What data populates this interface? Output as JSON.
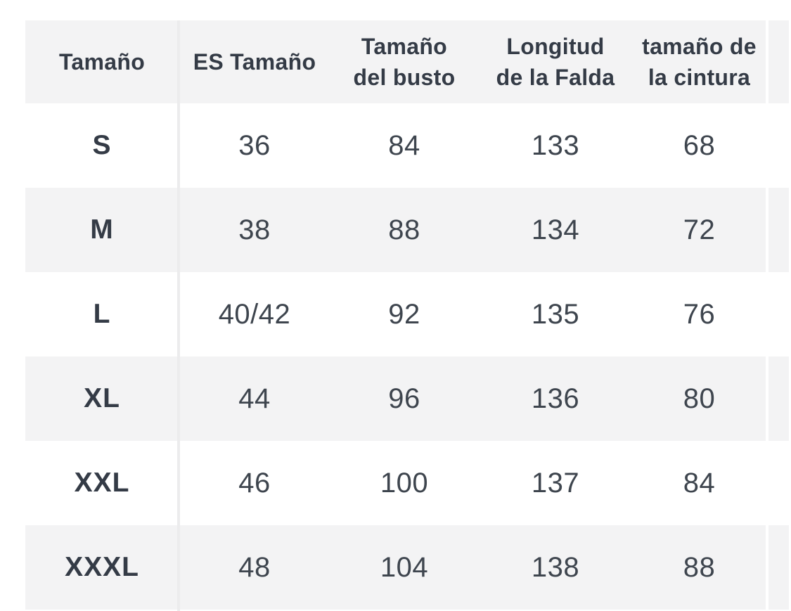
{
  "table": {
    "columns": [
      {
        "key": "size",
        "label": "Tamaño"
      },
      {
        "key": "es_size",
        "label": "ES Tamaño"
      },
      {
        "key": "bust",
        "label": "Tamaño\ndel busto"
      },
      {
        "key": "skirt_length",
        "label": "Longitud\nde la Falda"
      },
      {
        "key": "waist",
        "label": "tamaño de\nla cintura"
      }
    ],
    "rows": [
      {
        "size": "S",
        "es_size": "36",
        "bust": "84",
        "skirt_length": "133",
        "waist": "68"
      },
      {
        "size": "M",
        "es_size": "38",
        "bust": "88",
        "skirt_length": "134",
        "waist": "72"
      },
      {
        "size": "L",
        "es_size": "40/42",
        "bust": "92",
        "skirt_length": "135",
        "waist": "76"
      },
      {
        "size": "XL",
        "es_size": "44",
        "bust": "96",
        "skirt_length": "136",
        "waist": "80"
      },
      {
        "size": "XXL",
        "es_size": "46",
        "bust": "100",
        "skirt_length": "137",
        "waist": "84"
      },
      {
        "size": "XXXL",
        "es_size": "48",
        "bust": "104",
        "skirt_length": "138",
        "waist": "88"
      }
    ],
    "next_column_clipped": true
  },
  "colors": {
    "stripe": "#f3f3f4",
    "divider": "#ececed",
    "header_text": "#343b46",
    "cell_text": "#3e454e",
    "page_background": "#ffffff"
  },
  "chart_data": {
    "type": "table",
    "title": "",
    "columns": [
      "Tamaño",
      "ES Tamaño",
      "Tamaño del busto",
      "Longitud de la Falda",
      "tamaño de la cintura"
    ],
    "rows": [
      [
        "S",
        "36",
        "84",
        "133",
        "68"
      ],
      [
        "M",
        "38",
        "88",
        "134",
        "72"
      ],
      [
        "L",
        "40/42",
        "92",
        "135",
        "76"
      ],
      [
        "XL",
        "44",
        "96",
        "136",
        "80"
      ],
      [
        "XXL",
        "46",
        "100",
        "137",
        "84"
      ],
      [
        "XXXL",
        "48",
        "104",
        "138",
        "88"
      ]
    ],
    "layout_hints": {
      "striped_rows": true,
      "first_column_divider": true,
      "rightmost_column_clipped_by_viewport": true
    }
  }
}
